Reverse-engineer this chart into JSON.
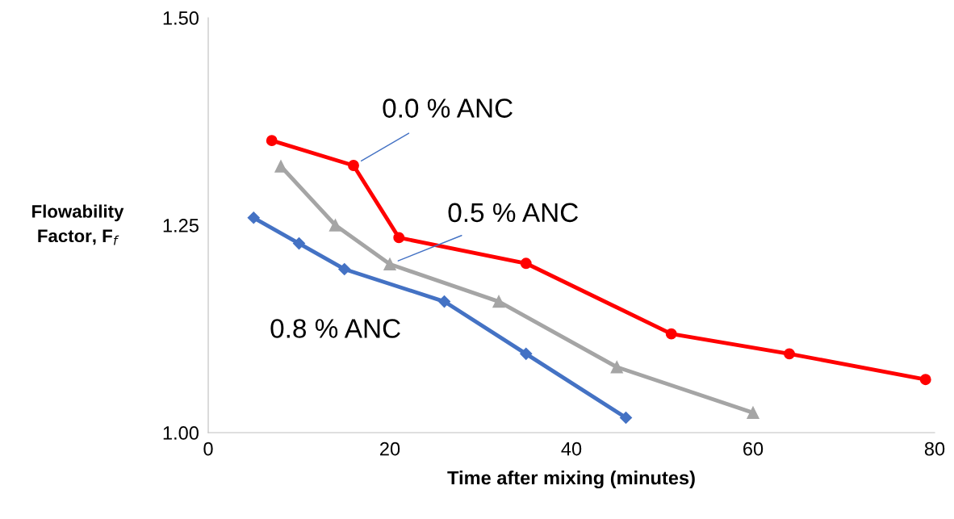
{
  "chart_data": {
    "type": "line",
    "xlabel": "Time after mixing (minutes)",
    "ylabel": "Flowability\nFactor, F$_{f}$",
    "xlim": [
      0,
      80
    ],
    "xticks": [
      0,
      20,
      40,
      60,
      80
    ],
    "ylim": [
      1.0,
      1.5
    ],
    "yticks": [
      {
        "value": 1.0,
        "label": "1.00"
      },
      {
        "value": 1.25,
        "label": "1.25"
      },
      {
        "value": 1.5,
        "label": "1.50"
      }
    ],
    "grid": false,
    "legend": false,
    "series": [
      {
        "name": "0.0 % ANC",
        "color": "#ff0000",
        "marker": "circle",
        "x": [
          7,
          16,
          21,
          35,
          51,
          64,
          79
        ],
        "values": [
          1.352,
          1.322,
          1.235,
          1.204,
          1.119,
          1.095,
          1.064
        ]
      },
      {
        "name": "0.5 % ANC",
        "color": "#a5a5a5",
        "marker": "triangle",
        "x": [
          8,
          14,
          20,
          32,
          45,
          60
        ],
        "values": [
          1.321,
          1.25,
          1.203,
          1.158,
          1.079,
          1.024
        ]
      },
      {
        "name": "0.8 % ANC",
        "color": "#4472c4",
        "marker": "diamond",
        "x": [
          5,
          10,
          15,
          26,
          35,
          46
        ],
        "values": [
          1.259,
          1.228,
          1.197,
          1.158,
          1.095,
          1.018
        ]
      }
    ]
  }
}
